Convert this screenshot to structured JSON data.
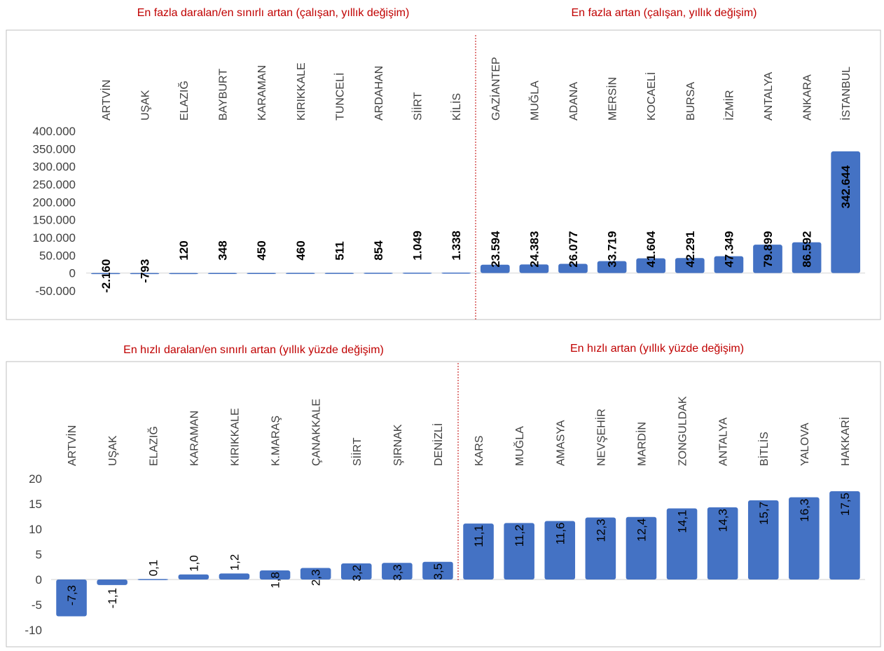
{
  "chart_data": [
    {
      "type": "bar",
      "title_left": "En fazla daralan/en sınırlı artan (çalışan, yıllık değişim)",
      "title_right": "En fazla artan (çalışan, yıllık değişim)",
      "categories": [
        "ARTVİN",
        "UŞAK",
        "ELAZIĞ",
        "BAYBURT",
        "KARAMAN",
        "KIRIKKALE",
        "TUNCELİ",
        "ARDAHAN",
        "SİİRT",
        "KİLİS",
        "GAZİANTEP",
        "MUĞLA",
        "ADANA",
        "MERSİN",
        "KOCAELİ",
        "BURSA",
        "İZMİR",
        "ANTALYA",
        "ANKARA",
        "İSTANBUL"
      ],
      "values": [
        -2160,
        -793,
        120,
        348,
        450,
        460,
        511,
        854,
        1049,
        1338,
        23594,
        24383,
        26077,
        33719,
        41604,
        42291,
        47349,
        79899,
        86592,
        342644
      ],
      "value_labels": [
        "-2.160",
        "-793",
        "120",
        "348",
        "450",
        "460",
        "511",
        "854",
        "1.049",
        "1.338",
        "23.594",
        "24.383",
        "26.077",
        "33.719",
        "41.604",
        "42.291",
        "47.349",
        "79.899",
        "86.592",
        "342.644"
      ],
      "yticks": [
        "400.000",
        "350.000",
        "300.000",
        "250.000",
        "200.000",
        "150.000",
        "100.000",
        "50.000",
        "0",
        "-50.000"
      ],
      "ylim": [
        -50000,
        400000
      ],
      "split_after_index": 9,
      "bar_color": "#4472c4",
      "divider_color": "#c00000"
    },
    {
      "type": "bar",
      "title_left": "En hızlı daralan/en sınırlı artan (yıllık yüzde değişim)",
      "title_right": "En hızlı artan (yıllık yüzde değişim)",
      "categories": [
        "ARTVİN",
        "UŞAK",
        "ELAZIĞ",
        "KARAMAN",
        "KIRIKKALE",
        "K.MARAŞ",
        "ÇANAKKALE",
        "SİİRT",
        "ŞIRNAK",
        "DENİZLİ",
        "KARS",
        "MUĞLA",
        "AMASYA",
        "NEVŞEHİR",
        "MARDİN",
        "ZONGULDAK",
        "ANTALYA",
        "BİTLİS",
        "YALOVA",
        "HAKKARİ"
      ],
      "values": [
        -7.3,
        -1.1,
        0.1,
        1.0,
        1.2,
        1.8,
        2.3,
        3.2,
        3.3,
        3.5,
        11.1,
        11.2,
        11.6,
        12.3,
        12.4,
        14.1,
        14.3,
        15.7,
        16.3,
        17.5
      ],
      "value_labels": [
        "-7,3",
        "-1,1",
        "0,1",
        "1,0",
        "1,2",
        "1,8",
        "2,3",
        "3,2",
        "3,3",
        "3,5",
        "11,1",
        "11,2",
        "11,6",
        "12,3",
        "12,4",
        "14,1",
        "14,3",
        "15,7",
        "16,3",
        "17,5"
      ],
      "yticks": [
        "20",
        "15",
        "10",
        "5",
        "0",
        "-5",
        "-10"
      ],
      "ylim": [
        -10,
        20
      ],
      "split_after_index": 9,
      "bar_color": "#4472c4",
      "divider_color": "#c00000"
    }
  ]
}
